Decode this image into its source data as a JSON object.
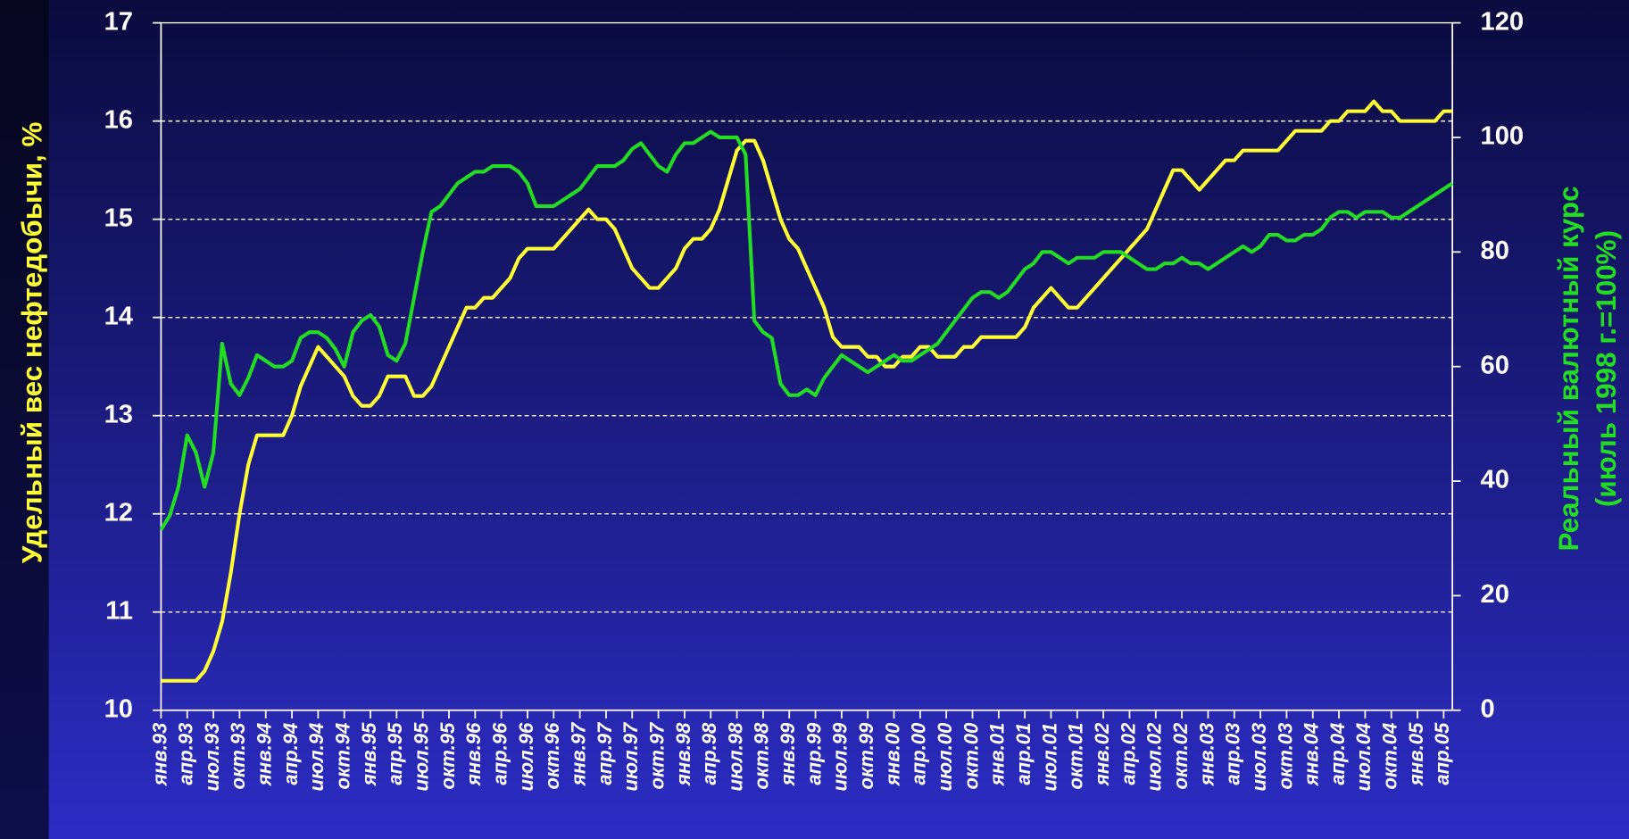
{
  "chart_data": {
    "type": "line",
    "y_label": "Удельный вес нефтедобычи, %",
    "y2_label": [
      "Реальный валютный курс",
      "(июль 1998 г.=100%)"
    ],
    "categories": [
      "янв.93",
      null,
      null,
      "апр.93",
      null,
      null,
      "июл.93",
      null,
      null,
      "окт.93",
      null,
      null,
      "янв.94",
      null,
      null,
      "апр.94",
      null,
      null,
      "июл.94",
      null,
      null,
      "окт.94",
      null,
      null,
      "янв.95",
      null,
      null,
      "апр.95",
      null,
      null,
      "июл.95",
      null,
      null,
      "окт.95",
      null,
      null,
      "янв.96",
      null,
      null,
      "апр.96",
      null,
      null,
      "июл.96",
      null,
      null,
      "окт.96",
      null,
      null,
      "янв.97",
      null,
      null,
      "апр.97",
      null,
      null,
      "июл.97",
      null,
      null,
      "окт.97",
      null,
      null,
      "янв.98",
      null,
      null,
      "апр.98",
      null,
      null,
      "июл.98",
      null,
      null,
      "окт.98",
      null,
      null,
      "янв.99",
      null,
      null,
      "апр.99",
      null,
      null,
      "июл.99",
      null,
      null,
      "окт.99",
      null,
      null,
      "янв.00",
      null,
      null,
      "апр.00",
      null,
      null,
      "июл.00",
      null,
      null,
      "окт.00",
      null,
      null,
      "янв.01",
      null,
      null,
      "апр.01",
      null,
      null,
      "июл.01",
      null,
      null,
      "окт.01",
      null,
      null,
      "янв.02",
      null,
      null,
      "апр.02",
      null,
      null,
      "июл.02",
      null,
      null,
      "окт.02",
      null,
      null,
      "янв.03",
      null,
      null,
      "апр.03",
      null,
      null,
      "июл.03",
      null,
      null,
      "окт.03",
      null,
      null,
      "янв.04",
      null,
      null,
      "апр.04",
      null,
      null,
      "июл.04",
      null,
      null,
      "окт.04",
      null,
      null,
      "янв.05",
      null,
      null,
      "апр.05",
      null
    ],
    "series": [
      {
        "color": "#ffff33",
        "values": [
          10.3,
          10.3,
          10.3,
          10.3,
          10.3,
          10.4,
          10.6,
          10.9,
          11.4,
          12.0,
          12.5,
          12.8,
          12.8,
          12.8,
          12.8,
          13.0,
          13.3,
          13.5,
          13.7,
          13.6,
          13.5,
          13.4,
          13.2,
          13.1,
          13.1,
          13.2,
          13.4,
          13.4,
          13.4,
          13.2,
          13.2,
          13.3,
          13.5,
          13.7,
          13.9,
          14.1,
          14.1,
          14.2,
          14.2,
          14.3,
          14.4,
          14.6,
          14.7,
          14.7,
          14.7,
          14.7,
          14.8,
          14.9,
          15.0,
          15.1,
          15.0,
          15.0,
          14.9,
          14.7,
          14.5,
          14.4,
          14.3,
          14.3,
          14.4,
          14.5,
          14.7,
          14.8,
          14.8,
          14.9,
          15.1,
          15.4,
          15.7,
          15.8,
          15.8,
          15.6,
          15.3,
          15.0,
          14.8,
          14.7,
          14.5,
          14.3,
          14.1,
          13.8,
          13.7,
          13.7,
          13.7,
          13.6,
          13.6,
          13.5,
          13.5,
          13.6,
          13.6,
          13.7,
          13.7,
          13.6,
          13.6,
          13.6,
          13.7,
          13.7,
          13.8,
          13.8,
          13.8,
          13.8,
          13.8,
          13.9,
          14.1,
          14.2,
          14.3,
          14.2,
          14.1,
          14.1,
          14.2,
          14.3,
          14.4,
          14.5,
          14.6,
          14.7,
          14.8,
          14.9,
          15.1,
          15.3,
          15.5,
          15.5,
          15.4,
          15.3,
          15.4,
          15.5,
          15.6,
          15.6,
          15.7,
          15.7,
          15.7,
          15.7,
          15.7,
          15.8,
          15.9,
          15.9,
          15.9,
          15.9,
          16.0,
          16.0,
          16.1,
          16.1,
          16.1,
          16.2,
          16.1,
          16.1,
          16.0,
          16.0,
          16.0,
          16.0,
          16.0,
          16.1,
          16.1
        ]
      },
      {
        "color": "#22dd22",
        "axis": "y2",
        "values": [
          31.5,
          34,
          39,
          48,
          45,
          39,
          45,
          64,
          57,
          55,
          58,
          62,
          61,
          60,
          60,
          61,
          65,
          66,
          66,
          65,
          63,
          60,
          66,
          68,
          69,
          67,
          62,
          61,
          64,
          72,
          80,
          87,
          88,
          90,
          92,
          93,
          94,
          94,
          95,
          95,
          95,
          94,
          92,
          88,
          88,
          88,
          89,
          90,
          91,
          93,
          95,
          95,
          95,
          96,
          98,
          99,
          97,
          95,
          94,
          97,
          99,
          99,
          100,
          101,
          100,
          100,
          100,
          97,
          68,
          66,
          65,
          57,
          55,
          55,
          56,
          55,
          58,
          60,
          62,
          61,
          60,
          59,
          60,
          61,
          62,
          61,
          61,
          62,
          63,
          64,
          66,
          68,
          70,
          72,
          73,
          73,
          72,
          73,
          75,
          77,
          78,
          80,
          80,
          79,
          78,
          79,
          79,
          79,
          80,
          80,
          80,
          79,
          78,
          77,
          77,
          78,
          78,
          79,
          78,
          78,
          77,
          78,
          79,
          80,
          81,
          80,
          81,
          83,
          83,
          82,
          82,
          83,
          83,
          84,
          86,
          87,
          87,
          86,
          87,
          87,
          87,
          86,
          86,
          87,
          88,
          89,
          90,
          91,
          92
        ]
      }
    ],
    "ylim": [
      10,
      17
    ],
    "yticks": [
      10,
      11,
      12,
      13,
      14,
      15,
      16,
      17
    ],
    "y2lim": [
      0,
      120
    ],
    "y2ticks": [
      0,
      20,
      40,
      60,
      80,
      100,
      120
    ],
    "grid": true
  }
}
